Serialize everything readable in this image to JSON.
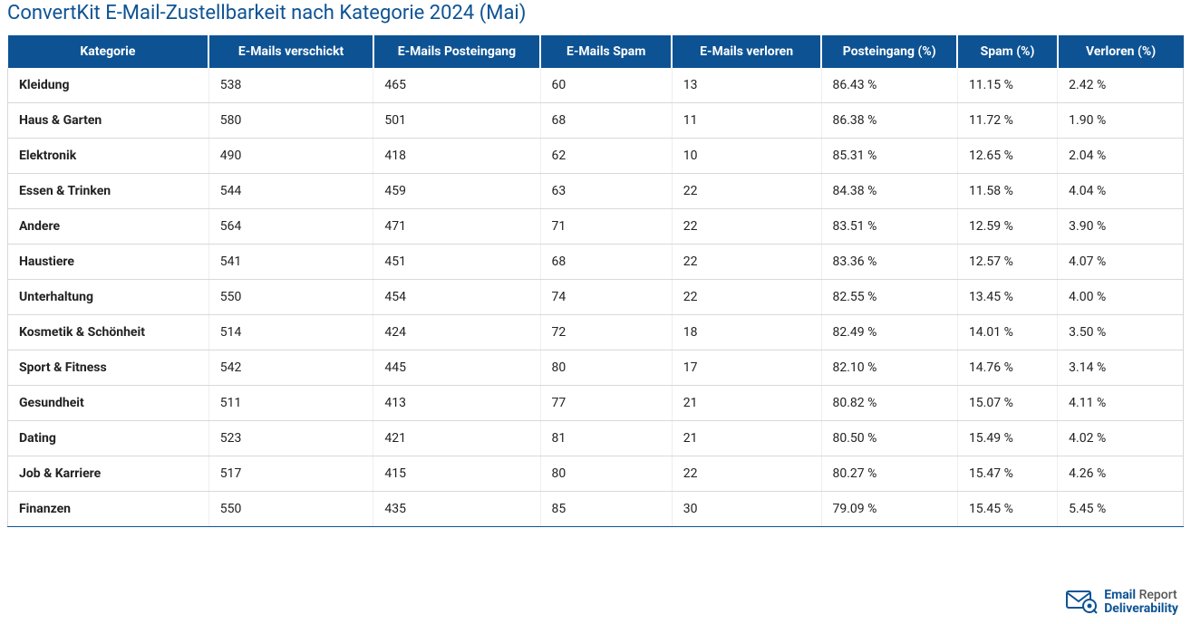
{
  "title": "ConvertKit E-Mail-Zustellbarkeit nach Kategorie 2024 (Mai)",
  "brand": {
    "word1": "Email",
    "word2": "Report",
    "word3": "Deliverability"
  },
  "table": {
    "columns": [
      "Kategorie",
      "E-Mails verschickt",
      "E-Mails Posteingang",
      "E-Mails Spam",
      "E-Mails verloren",
      "Posteingang (%)",
      "Spam (%)",
      "Verloren (%)"
    ],
    "column_widths_pct": [
      17.1,
      14.0,
      14.2,
      11.2,
      12.7,
      11.6,
      8.5,
      10.7
    ],
    "rows": [
      [
        "Kleidung",
        "538",
        "465",
        "60",
        "13",
        "86.43 %",
        "11.15 %",
        "2.42 %"
      ],
      [
        "Haus & Garten",
        "580",
        "501",
        "68",
        "11",
        "86.38 %",
        "11.72 %",
        "1.90 %"
      ],
      [
        "Elektronik",
        "490",
        "418",
        "62",
        "10",
        "85.31 %",
        "12.65 %",
        "2.04 %"
      ],
      [
        "Essen & Trinken",
        "544",
        "459",
        "63",
        "22",
        "84.38 %",
        "11.58 %",
        "4.04 %"
      ],
      [
        "Andere",
        "564",
        "471",
        "71",
        "22",
        "83.51 %",
        "12.59 %",
        "3.90 %"
      ],
      [
        "Haustiere",
        "541",
        "451",
        "68",
        "22",
        "83.36 %",
        "12.57 %",
        "4.07 %"
      ],
      [
        "Unterhaltung",
        "550",
        "454",
        "74",
        "22",
        "82.55 %",
        "13.45 %",
        "4.00 %"
      ],
      [
        "Kosmetik & Schönheit",
        "514",
        "424",
        "72",
        "18",
        "82.49 %",
        "14.01 %",
        "3.50 %"
      ],
      [
        "Sport & Fitness",
        "542",
        "445",
        "80",
        "17",
        "82.10 %",
        "14.76 %",
        "3.14 %"
      ],
      [
        "Gesundheit",
        "511",
        "413",
        "77",
        "21",
        "80.82 %",
        "15.07 %",
        "4.11 %"
      ],
      [
        "Dating",
        "523",
        "421",
        "81",
        "21",
        "80.50 %",
        "15.49 %",
        "4.02 %"
      ],
      [
        "Job & Karriere",
        "517",
        "415",
        "80",
        "22",
        "80.27 %",
        "15.47 %",
        "4.26 %"
      ],
      [
        "Finanzen",
        "550",
        "435",
        "85",
        "30",
        "79.09 %",
        "15.45 %",
        "5.45 %"
      ]
    ],
    "styling": {
      "header_bg": "#0d5394",
      "header_text": "#ffffff",
      "header_fontsize": 14,
      "header_fontweight": 700,
      "body_fontsize": 14,
      "body_text": "#222222",
      "first_col_fontweight": 700,
      "row_border_color": "#d6d9dc",
      "col_border_color": "#eceef0",
      "bottom_border_color": "#0d5394",
      "background_color": "#ffffff"
    }
  },
  "title_style": {
    "color": "#0d5394",
    "fontsize": 22,
    "fontweight": 400
  }
}
